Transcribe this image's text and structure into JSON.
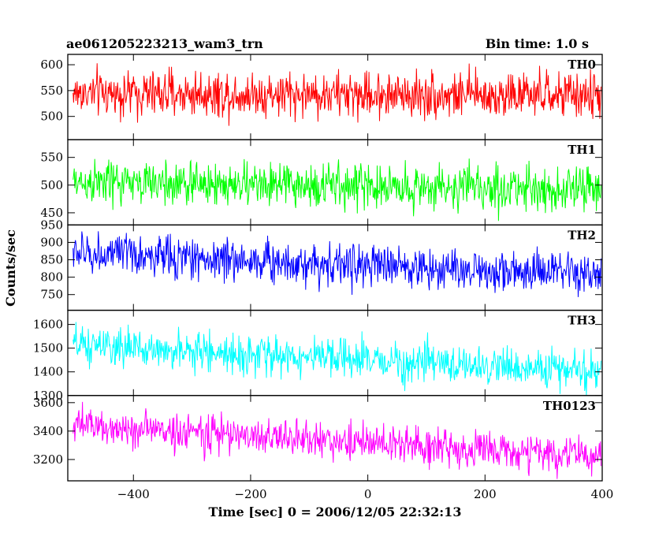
{
  "header": {
    "title": "ae061205223213_wam3_trn",
    "bin_time": "Bin time: 1.0 s"
  },
  "ylabel": "Counts/sec",
  "xlabel": "Time [sec] 0 = 2006/12/05 22:32:13",
  "chart_data": {
    "type": "line",
    "x_range": [
      -512,
      400
    ],
    "x_ticks": [
      -400,
      -200,
      0,
      200,
      400
    ],
    "x_tick_labels": [
      "−400",
      "−200",
      "0",
      "200",
      "400"
    ],
    "bin_time_s": 1.0,
    "panels": [
      {
        "name": "TH0",
        "color": "#ff0000",
        "ylim": [
          455,
          620
        ],
        "ticks": [
          500,
          550,
          600
        ],
        "mean_start": 545,
        "mean_end": 540,
        "noise_std": 22
      },
      {
        "name": "TH1",
        "color": "#00ff00",
        "ylim": [
          428,
          582
        ],
        "ticks": [
          450,
          500,
          550
        ],
        "mean_start": 505,
        "mean_end": 492,
        "noise_std": 20
      },
      {
        "name": "TH2",
        "color": "#0000ff",
        "ylim": [
          705,
          950
        ],
        "ticks": [
          750,
          800,
          850,
          900,
          950
        ],
        "mean_start": 870,
        "mean_end": 805,
        "noise_std": 30
      },
      {
        "name": "TH3",
        "color": "#00ffff",
        "ylim": [
          1300,
          1660
        ],
        "ticks": [
          1300,
          1400,
          1500,
          1600
        ],
        "mean_start": 1510,
        "mean_end": 1400,
        "noise_std": 40
      },
      {
        "name": "TH0123",
        "color": "#ff00ff",
        "ylim": [
          3050,
          3650
        ],
        "ticks": [
          3200,
          3400,
          3600
        ],
        "mean_start": 3440,
        "mean_end": 3220,
        "noise_std": 65
      }
    ]
  }
}
